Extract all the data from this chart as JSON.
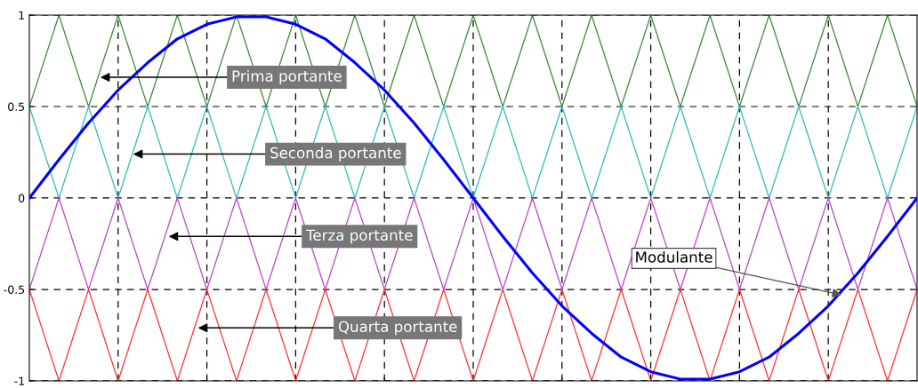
{
  "chart_data": {
    "type": "line",
    "legend": false,
    "grid": true,
    "tick_labels": "y",
    "line_style": "solid",
    "marker": "none",
    "ylim": [
      -1,
      1
    ],
    "yticks": [
      {
        "value": -1,
        "label": "-1"
      },
      {
        "value": -0.5,
        "label": "-0.5"
      },
      0,
      0.5,
      1
    ],
    "categories": [
      null,
      null,
      null,
      null,
      null,
      null,
      null,
      null,
      null,
      null,
      null,
      null,
      null,
      null,
      null,
      null,
      null,
      null,
      null,
      null,
      null,
      null,
      null,
      null,
      null,
      null,
      null,
      null,
      null,
      null,
      null
    ],
    "series": [
      {
        "color": "#3a8a3a",
        "values": [
          0.5,
          1,
          0.5,
          1,
          0.5,
          1,
          0.5,
          1,
          0.5,
          1,
          0.5,
          1,
          0.5,
          1,
          0.5,
          1,
          0.5,
          1,
          0.5,
          1,
          0.5,
          1,
          0.5,
          1,
          0.5,
          1,
          0.5,
          1,
          0.5,
          1,
          0.5
        ]
      },
      {
        "color": "#33bbbb",
        "values": [
          0.5,
          0,
          0.5,
          0,
          0.5,
          0,
          0.5,
          0,
          0.5,
          0,
          0.5,
          0,
          0.5,
          0,
          0.5,
          0,
          0.5,
          0,
          0.5,
          0,
          0.5,
          0,
          0.5,
          0,
          0.5,
          0,
          0.5,
          0,
          0.5,
          0,
          0.5
        ]
      },
      {
        "color": "#bb44cc",
        "values": [
          -0.5,
          0,
          -0.5,
          0,
          -0.5,
          0,
          -0.5,
          0,
          -0.5,
          0,
          -0.5,
          0,
          -0.5,
          0,
          -0.5,
          0,
          -0.5,
          0,
          -0.5,
          0,
          -0.5,
          0,
          -0.5,
          0,
          -0.5,
          0,
          -0.5,
          0,
          -0.5,
          0,
          -0.5
        ]
      },
      {
        "color": "#ff3333",
        "values": [
          -0.5,
          -1,
          -0.5,
          -1,
          -0.5,
          -1,
          -0.5,
          -1,
          -0.5,
          -1,
          -0.5,
          -1,
          -0.5,
          -1,
          -0.5,
          -1,
          -0.5,
          -1,
          -0.5,
          -1,
          -0.5,
          -1,
          -0.5,
          -1,
          -0.5,
          -1,
          -0.5,
          -1,
          -0.5,
          -1,
          -0.5
        ]
      },
      {
        "color": "#0000ff",
        "values": [
          0,
          0.21,
          0.41,
          0.59,
          0.74,
          0.87,
          0.95,
          0.99,
          0.99,
          0.95,
          0.87,
          0.74,
          0.59,
          0.41,
          0.21,
          0,
          -0.21,
          -0.41,
          -0.59,
          -0.74,
          -0.87,
          -0.95,
          -0.99,
          -0.99,
          -0.95,
          -0.87,
          -0.74,
          -0.59,
          -0.41,
          -0.21,
          0
        ]
      }
    ],
    "annotations": [
      "Prima portante",
      "Seconda portante",
      "Terza portante",
      "Quarta portante",
      "Modulante"
    ]
  }
}
